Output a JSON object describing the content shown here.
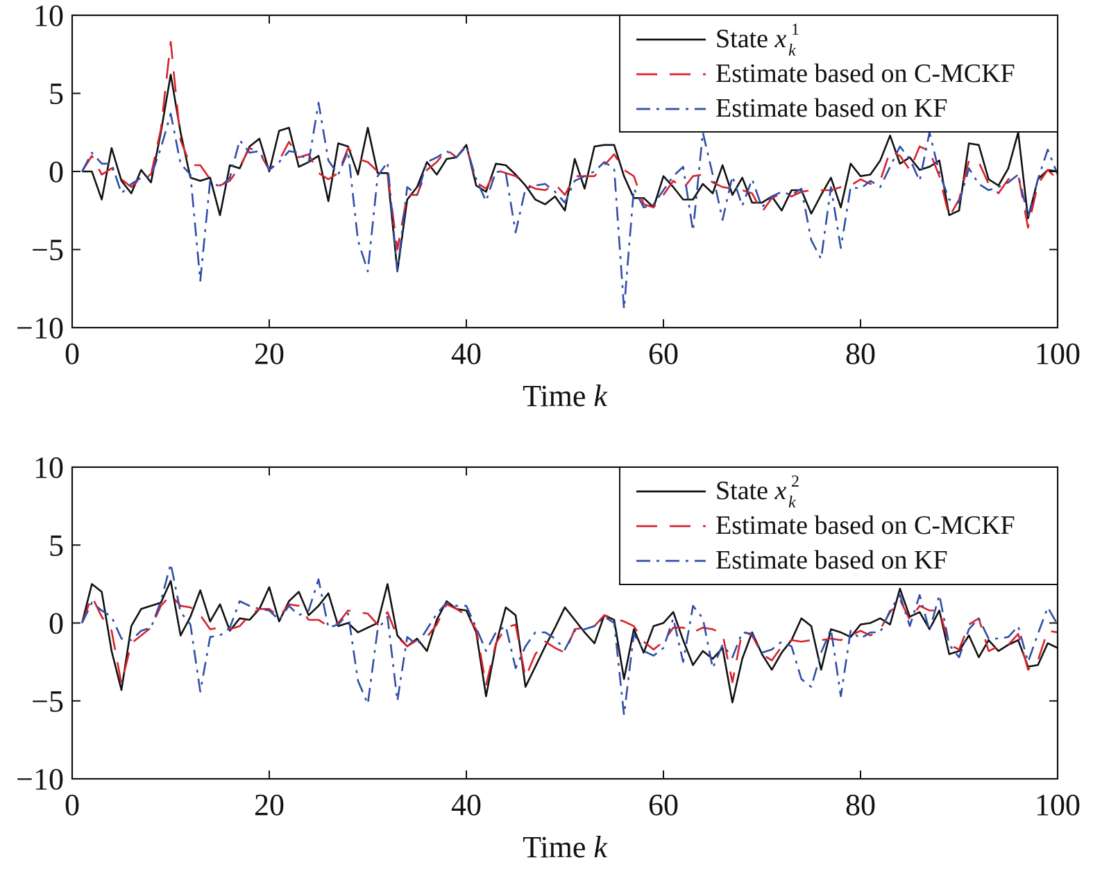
{
  "chart_data": [
    {
      "type": "line",
      "xlabel": "Time",
      "xlabel_var": "k",
      "xlim": [
        0,
        100
      ],
      "ylim": [
        -10,
        10
      ],
      "xticks": [
        "0",
        "20",
        "40",
        "60",
        "80",
        "100"
      ],
      "yticks": [
        "10",
        "5",
        "0",
        "−5",
        "−10"
      ],
      "xtick_values": [
        0,
        20,
        40,
        60,
        80,
        100
      ],
      "ytick_values": [
        10,
        5,
        0,
        -5,
        -10
      ],
      "grid": false,
      "legend_position": "top-right",
      "x": [
        1,
        2,
        3,
        4,
        5,
        6,
        7,
        8,
        9,
        10,
        11,
        12,
        13,
        14,
        15,
        16,
        17,
        18,
        19,
        20,
        21,
        22,
        23,
        24,
        25,
        26,
        27,
        28,
        29,
        30,
        31,
        32,
        33,
        34,
        35,
        36,
        37,
        38,
        39,
        40,
        41,
        42,
        43,
        44,
        45,
        46,
        47,
        48,
        49,
        50,
        51,
        52,
        53,
        54,
        55,
        56,
        57,
        58,
        59,
        60,
        61,
        62,
        63,
        64,
        65,
        66,
        67,
        68,
        69,
        70,
        71,
        72,
        73,
        74,
        75,
        76,
        77,
        78,
        79,
        80,
        81,
        82,
        83,
        84,
        85,
        86,
        87,
        88,
        89,
        90,
        91,
        92,
        93,
        94,
        95,
        96,
        97,
        98,
        99,
        100
      ],
      "series": [
        {
          "name": "State",
          "name_var": "x",
          "name_sub": "k",
          "name_sup": "1",
          "color": "#111111",
          "dash": "solid",
          "values": [
            0,
            0,
            -1.8,
            1.5,
            -0.6,
            -1.4,
            0.1,
            -0.7,
            2.5,
            6.2,
            2.5,
            -0.4,
            -0.6,
            -0.4,
            -2.8,
            0.4,
            0.2,
            1.6,
            2.1,
            0,
            2.6,
            2.8,
            0.3,
            0.6,
            1,
            -1.9,
            1.8,
            1.6,
            -0.2,
            2.8,
            -0.1,
            -0.1,
            -6.4,
            -1.8,
            -1,
            0.6,
            -0.2,
            0.8,
            0.9,
            1.7,
            -0.9,
            -1.3,
            0.5,
            0.4,
            -0.2,
            -0.9,
            -1.8,
            -2.1,
            -1.6,
            -2.5,
            0.8,
            -1.1,
            1.6,
            1.7,
            1.7,
            -0.3,
            -1.7,
            -1.7,
            -2.3,
            -0.3,
            -1,
            -1.8,
            -1.8,
            -0.8,
            -1.4,
            0.4,
            -1.5,
            -0.4,
            -2,
            -2,
            -1.6,
            -2.5,
            -1.2,
            -1.2,
            -2.7,
            -1.5,
            -0.4,
            -2.3,
            0.5,
            -0.3,
            -0.2,
            0.7,
            2.3,
            0.5,
            0.9,
            0.1,
            0.3,
            0.7,
            -2.8,
            -2.5,
            1.8,
            1.7,
            -0.5,
            -0.9,
            0.2,
            2.5,
            -3,
            -0.5,
            0.1,
            0
          ]
        },
        {
          "name": "Estimate based on C-MCKF",
          "color": "#d7222b",
          "dash": "long-dash",
          "values": [
            0,
            1,
            -0.2,
            0.2,
            -0.5,
            -1,
            -0.4,
            -0.2,
            2.7,
            8.3,
            2,
            0.4,
            0.4,
            -0.5,
            -0.9,
            -0.6,
            0.3,
            1.5,
            1.2,
            0.1,
            0.7,
            1.9,
            0.9,
            1.1,
            -0.1,
            -0.5,
            -0.1,
            1.5,
            0.8,
            0.6,
            0,
            -0.1,
            -5,
            -1.5,
            -1.5,
            0.1,
            0.6,
            1.4,
            0.9,
            1.7,
            -0.7,
            -1.1,
            0.1,
            -0.1,
            -0.3,
            -0.8,
            -1.1,
            -1.2,
            -0.8,
            -1.5,
            -0.3,
            -0.3,
            -0.3,
            0.4,
            1.1,
            0.1,
            -0.3,
            -2.1,
            -2.3,
            -1.5,
            -0.6,
            -1.1,
            -0.3,
            -0.2,
            -0.7,
            -1,
            -1.1,
            -1.2,
            -1.4,
            -2.6,
            -1.7,
            -1.4,
            -1.6,
            -1.3,
            -1.2,
            -1.2,
            -1.2,
            -1,
            -0.9,
            -0.5,
            -0.8,
            -0.6,
            1.3,
            1,
            0.1,
            1.6,
            1.3,
            -0.3,
            -2.9,
            -1.8,
            0.7,
            0.6,
            -0.8,
            -1.4,
            -0.5,
            -0.2,
            -3.6,
            -0.8,
            0.1,
            -0.5
          ]
        },
        {
          "name": "Estimate based on KF",
          "color": "#2f4da8",
          "dash": "dash-dot",
          "values": [
            0,
            1.2,
            0.5,
            0.5,
            -1.4,
            -0.8,
            -0.4,
            -0.3,
            1.5,
            3.7,
            0.5,
            -0.2,
            -7,
            -0.6,
            -1,
            -0.4,
            2,
            1.2,
            1.3,
            0.1,
            0.6,
            1.3,
            1.2,
            0.6,
            4.4,
            0.7,
            -0.2,
            1.3,
            -4.4,
            -6.4,
            -0.3,
            0.6,
            -6.4,
            -1,
            -1.5,
            0.6,
            0.9,
            1.3,
            0.9,
            1.6,
            -0.5,
            -1.9,
            0,
            -0.1,
            -3.9,
            -1.1,
            -0.9,
            -0.8,
            -1.3,
            -2,
            -0.6,
            -0.3,
            0,
            0.6,
            0.2,
            -8.8,
            -1.1,
            -2.3,
            -2.1,
            -1.2,
            -0.3,
            0.3,
            -3.8,
            2.5,
            -0.2,
            -3.1,
            -0.3,
            -2.2,
            -0.5,
            -2.3,
            -1.6,
            -1.3,
            -1.5,
            -1.1,
            -4.4,
            -5.6,
            -1,
            -4.9,
            -1,
            -1.1,
            -0.6,
            -1,
            0.3,
            1.6,
            0.8,
            -0.6,
            2.5,
            -0.1,
            -1.8,
            -2,
            0.2,
            -0.8,
            -1.2,
            -1,
            -0.7,
            -0.2,
            -2.9,
            -0.5,
            1.4,
            -0.2
          ]
        }
      ]
    },
    {
      "type": "line",
      "xlabel": "Time",
      "xlabel_var": "k",
      "xlim": [
        0,
        100
      ],
      "ylim": [
        -10,
        10
      ],
      "xticks": [
        "0",
        "20",
        "40",
        "60",
        "80",
        "100"
      ],
      "yticks": [
        "10",
        "5",
        "0",
        "−5",
        "−10"
      ],
      "xtick_values": [
        0,
        20,
        40,
        60,
        80,
        100
      ],
      "ytick_values": [
        10,
        5,
        0,
        -5,
        -10
      ],
      "grid": false,
      "legend_position": "top-right",
      "x": [
        1,
        2,
        3,
        4,
        5,
        6,
        7,
        8,
        9,
        10,
        11,
        12,
        13,
        14,
        15,
        16,
        17,
        18,
        19,
        20,
        21,
        22,
        23,
        24,
        25,
        26,
        27,
        28,
        29,
        30,
        31,
        32,
        33,
        34,
        35,
        36,
        37,
        38,
        39,
        40,
        41,
        42,
        43,
        44,
        45,
        46,
        47,
        48,
        49,
        50,
        51,
        52,
        53,
        54,
        55,
        56,
        57,
        58,
        59,
        60,
        61,
        62,
        63,
        64,
        65,
        66,
        67,
        68,
        69,
        70,
        71,
        72,
        73,
        74,
        75,
        76,
        77,
        78,
        79,
        80,
        81,
        82,
        83,
        84,
        85,
        86,
        87,
        88,
        89,
        90,
        91,
        92,
        93,
        94,
        95,
        96,
        97,
        98,
        99,
        100
      ],
      "series": [
        {
          "name": "State",
          "name_var": "x",
          "name_sub": "k",
          "name_sup": "2",
          "color": "#111111",
          "dash": "solid",
          "values": [
            0,
            2.5,
            2,
            -1.8,
            -4.3,
            -0.2,
            0.9,
            1.1,
            1.3,
            2.7,
            -0.8,
            0.4,
            2.1,
            0.1,
            1.2,
            -0.5,
            0.3,
            0.2,
            0.9,
            2.3,
            0.1,
            1.4,
            2,
            0.5,
            1.1,
            1.9,
            -0.2,
            0,
            -0.6,
            -0.3,
            0,
            2.5,
            -0.8,
            -1.5,
            -1,
            -1.8,
            0.2,
            1.4,
            0.9,
            0.8,
            -0.6,
            -4.7,
            -1.4,
            1,
            0.5,
            -4.1,
            -2.8,
            -1.5,
            -0.3,
            1,
            0.2,
            -0.6,
            -1.3,
            0.5,
            0.2,
            -3.6,
            -0.4,
            -1.9,
            -0.2,
            0,
            0.7,
            -1.1,
            -2.7,
            -1.8,
            -2.3,
            -1.6,
            -5.1,
            -2.3,
            -0.6,
            -2,
            -3,
            -1.9,
            -1.1,
            0.3,
            -0.2,
            -3,
            -0.4,
            -0.6,
            -0.9,
            -0.1,
            0,
            0.3,
            -0.1,
            2.2,
            0.4,
            0.7,
            -0.4,
            0.8,
            -2,
            -1.8,
            -0.8,
            -2.2,
            -1.1,
            -1.8,
            -1.4,
            -1.1,
            -2.8,
            -2.7,
            -1.3,
            -1.6
          ]
        },
        {
          "name": "Estimate based on C-MCKF",
          "color": "#d7222b",
          "dash": "long-dash",
          "values": [
            0,
            1.7,
            0.4,
            -0.5,
            -3.9,
            -1.3,
            -0.8,
            -0.3,
            1.1,
            1.8,
            1.1,
            1,
            0.5,
            -0.4,
            -0.3,
            -0.4,
            -0.2,
            0.5,
            0.9,
            0.9,
            0.4,
            1.2,
            1.1,
            0.2,
            0.2,
            -0.2,
            0,
            0.8,
            0.7,
            0.6,
            -0.1,
            0.7,
            -0.9,
            -1.5,
            -1.1,
            -0.9,
            -0.1,
            1.2,
            0.9,
            0.5,
            -0.4,
            -4,
            -1.3,
            -0.3,
            -0.1,
            -3.5,
            -2,
            -1.2,
            -1.6,
            -1.9,
            -0.4,
            -0.3,
            -0.2,
            0.5,
            0.3,
            0.1,
            -0.2,
            -1.2,
            -1.7,
            -1.2,
            -0.3,
            -0.3,
            -0.6,
            -0.3,
            -0.4,
            -0.7,
            -3.8,
            -0.5,
            -0.8,
            -2,
            -2.4,
            -1.5,
            -1.1,
            -1.2,
            -1.1,
            -1.1,
            -1,
            -1.1,
            -0.8,
            -0.5,
            -0.8,
            -0.4,
            0.7,
            1.5,
            0.2,
            1.1,
            0.8,
            0.8,
            -1.4,
            -1.7,
            -0.1,
            0.3,
            -1.8,
            -1.5,
            -1.4,
            -0.7,
            -3,
            -2.4,
            -0.5,
            -0.6
          ]
        },
        {
          "name": "Estimate based on KF",
          "color": "#2f4da8",
          "dash": "dash-dot",
          "values": [
            0,
            1.3,
            0.8,
            0.4,
            -1,
            -1.1,
            -0.5,
            -0.3,
            1.4,
            3.8,
            0.7,
            -0.1,
            -4.4,
            -0.9,
            -0.8,
            -0.3,
            1.4,
            1.1,
            0.9,
            0.8,
            0.2,
            1.1,
            0.5,
            0.8,
            2.8,
            -0.3,
            -0.1,
            0.6,
            -3.7,
            -5.2,
            -0.4,
            0.4,
            -5,
            -0.9,
            -1.4,
            -0.4,
            0.6,
            1.3,
            1.1,
            1.1,
            -0.3,
            -1.8,
            -0.6,
            -0.2,
            -2.9,
            -1.5,
            -0.6,
            -0.6,
            -1,
            -1.7,
            -0.5,
            -0.4,
            -0.2,
            0.4,
            0,
            -5.9,
            -0.7,
            -1.8,
            -2.1,
            -1.6,
            0.3,
            -2.5,
            1.1,
            0.3,
            -2.9,
            -1.4,
            -2.2,
            -0.6,
            -0.7,
            -1.9,
            -1.7,
            -1.2,
            -1.5,
            -3.6,
            -4.1,
            -1.9,
            -0.4,
            -4.7,
            -0.5,
            -1,
            -0.6,
            -0.6,
            0.8,
            1.8,
            -0.2,
            1.8,
            -0.5,
            1.8,
            -1.4,
            -2.2,
            -0.4,
            0.3,
            -1,
            -1,
            -0.9,
            -0.2,
            -2.5,
            -0.7,
            1,
            -0.1
          ]
        }
      ]
    }
  ]
}
